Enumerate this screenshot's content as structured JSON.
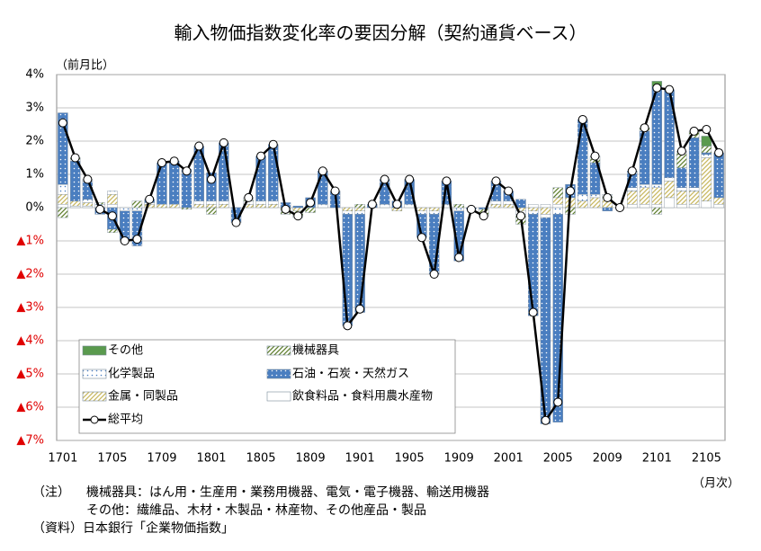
{
  "chart_data": {
    "type": "stacked_bar_line",
    "title": "輸入物価指数変化率の要因分解（契約通貨ベース）",
    "y_label": "（前月比）",
    "x_label": "（月次）",
    "categories": [
      "1701",
      null,
      null,
      null,
      "1705",
      null,
      null,
      null,
      "1709",
      null,
      null,
      null,
      "1801",
      null,
      null,
      null,
      "1805",
      null,
      null,
      null,
      "1809",
      null,
      null,
      null,
      "1901",
      null,
      null,
      null,
      "1905",
      null,
      null,
      null,
      "1909",
      null,
      null,
      null,
      "2001",
      null,
      null,
      null,
      "2005",
      null,
      null,
      null,
      "2009",
      null,
      null,
      null,
      "2101",
      null,
      null,
      null,
      "2105",
      null
    ],
    "ylim": [
      -7,
      4
    ],
    "yticks": [
      {
        "value": 4,
        "label": "4%"
      },
      {
        "value": 3,
        "label": "3%"
      },
      {
        "value": 2,
        "label": "2%"
      },
      {
        "value": 1,
        "label": "1%"
      },
      {
        "value": 0,
        "label": "0%"
      },
      {
        "value": -1,
        "label": "▲1%"
      },
      {
        "value": -2,
        "label": "▲2%"
      },
      {
        "value": -3,
        "label": "▲3%"
      },
      {
        "value": -4,
        "label": "▲4%"
      },
      {
        "value": -5,
        "label": "▲5%"
      },
      {
        "value": -6,
        "label": "▲6%"
      },
      {
        "value": -7,
        "label": "▲7%"
      }
    ],
    "grid": true,
    "legend": "bottom-left",
    "series": [
      {
        "name": "その他",
        "color": "#5a9a4e",
        "pattern": "solid",
        "values": [
          0,
          0,
          0,
          0,
          0,
          0,
          0,
          0,
          0,
          0,
          0,
          0,
          0,
          0,
          0,
          0,
          0,
          0,
          0,
          0,
          0,
          0,
          0,
          0,
          0,
          0,
          0,
          0,
          0,
          0,
          0,
          0,
          0,
          0,
          0,
          0,
          0,
          0,
          0,
          0,
          0,
          0,
          0,
          0,
          0,
          0,
          0,
          0,
          0.15,
          0,
          0,
          0,
          0.3,
          0
        ]
      },
      {
        "name": "機械器具",
        "color": "#5f7f2f",
        "pattern": "hatch",
        "values": [
          -0.3,
          0.1,
          0.05,
          0.05,
          -0.1,
          -0.05,
          0.2,
          0,
          0,
          0,
          -0.05,
          0,
          -0.2,
          0,
          0,
          0.1,
          0,
          0,
          -0.2,
          -0.2,
          -0.15,
          0,
          0,
          0,
          0.1,
          0,
          0,
          0,
          0,
          0,
          0,
          0,
          0.1,
          0,
          -0.2,
          0,
          0,
          -0.3,
          0,
          0,
          0.3,
          -0.2,
          0,
          0.2,
          0.1,
          0,
          0,
          0.1,
          -0.2,
          0,
          0.5,
          0.2,
          0.2,
          0
        ]
      },
      {
        "name": "化学製品",
        "color": "#4a7ec0",
        "pattern": "dots",
        "values": [
          0.3,
          0,
          0.1,
          0.1,
          0.1,
          -0.1,
          -0.1,
          0.05,
          0,
          0,
          0,
          0.1,
          0.1,
          0.1,
          0,
          0.1,
          0.1,
          0.1,
          0,
          0,
          0,
          0.1,
          0,
          -0.1,
          -0.1,
          0,
          0.1,
          0,
          0.1,
          -0.1,
          -0.1,
          0.1,
          -0.1,
          0,
          0,
          0.1,
          0.1,
          -0.1,
          -0.1,
          -0.1,
          -0.2,
          0,
          0.2,
          0.1,
          0,
          0,
          0.1,
          0.1,
          0.1,
          0.1,
          0.1,
          0.1,
          0.1,
          0
        ]
      },
      {
        "name": "石油・石炭・天然ガス",
        "color": "#4a7ec0",
        "pattern": "dots-on-color",
        "values": [
          2.15,
          1.2,
          0.55,
          -0.2,
          -0.65,
          -0.85,
          -1.05,
          0.1,
          1.25,
          1.3,
          1.15,
          1.65,
          0.85,
          1.75,
          -0.45,
          0,
          1.35,
          1.7,
          0.15,
          0.05,
          0.3,
          1.0,
          0.5,
          -3.35,
          -2.95,
          0.1,
          0.75,
          0.2,
          0.75,
          -0.7,
          -1.8,
          0.7,
          -1.5,
          -0.05,
          -0.05,
          0.6,
          0.3,
          0.25,
          -3.05,
          -6.2,
          -6.25,
          0.4,
          2.25,
          0.95,
          -0.1,
          0,
          0.5,
          1.6,
          2.95,
          2.65,
          0.6,
          1.5,
          0.05,
          1.35
        ]
      },
      {
        "name": "金属・同製品",
        "color": "#c8b860",
        "pattern": "hatch",
        "values": [
          0.3,
          0.15,
          0.1,
          0,
          0.3,
          0,
          0,
          0.1,
          0.1,
          0.1,
          0,
          0.1,
          0.1,
          0.1,
          0,
          0.1,
          0.1,
          0.1,
          0,
          -0.1,
          0,
          0,
          0,
          -0.1,
          -0.1,
          0,
          0,
          -0.1,
          0,
          -0.1,
          -0.1,
          0,
          0,
          0,
          0,
          0.1,
          0.1,
          -0.1,
          -0.1,
          -0.2,
          0.2,
          0.3,
          0.2,
          0.3,
          0.3,
          0,
          0.4,
          0.5,
          0.5,
          0.5,
          0.4,
          0.4,
          1.3,
          0.2
        ]
      },
      {
        "name": "飲食料品・食料用農水産物",
        "color": "#ffffff",
        "pattern": "solid",
        "values": [
          0.1,
          0.05,
          0.05,
          0,
          0.1,
          0,
          0,
          0,
          0,
          0,
          0,
          0,
          0,
          0,
          0,
          0,
          0,
          0,
          0,
          0,
          0,
          0,
          0,
          0,
          0,
          0,
          0,
          0,
          0,
          0,
          0,
          0,
          0,
          0,
          0,
          0,
          0,
          0,
          0.1,
          0.1,
          0.1,
          0,
          0,
          0,
          0,
          0,
          0.1,
          0.1,
          0.1,
          0.3,
          0.1,
          0.1,
          0.2,
          0.1
        ]
      }
    ],
    "line": {
      "name": "総平均",
      "color": "#000000",
      "values": [
        2.55,
        1.5,
        0.85,
        -0.05,
        -0.25,
        -1.0,
        -0.95,
        0.25,
        1.35,
        1.4,
        1.1,
        1.85,
        0.85,
        1.95,
        -0.45,
        0.3,
        1.55,
        1.9,
        -0.05,
        -0.25,
        0.15,
        1.1,
        0.5,
        -3.55,
        -3.05,
        0.1,
        0.85,
        0.1,
        0.85,
        -0.9,
        -2.0,
        0.8,
        -1.5,
        -0.05,
        -0.25,
        0.8,
        0.5,
        -0.25,
        -3.15,
        -6.4,
        -5.85,
        0.5,
        2.65,
        1.55,
        0.3,
        0.0,
        1.1,
        2.4,
        3.6,
        3.55,
        1.7,
        2.3,
        2.35,
        1.65
      ]
    },
    "notes": [
      "（注）",
      "機械器具：はん用・生産用・業務用機器、電気・電子機器、輸送用機器",
      "その他：繊維品、木材・木製品・林産物、その他産品・製品",
      "（資料）日本銀行「企業物価指数」"
    ]
  }
}
